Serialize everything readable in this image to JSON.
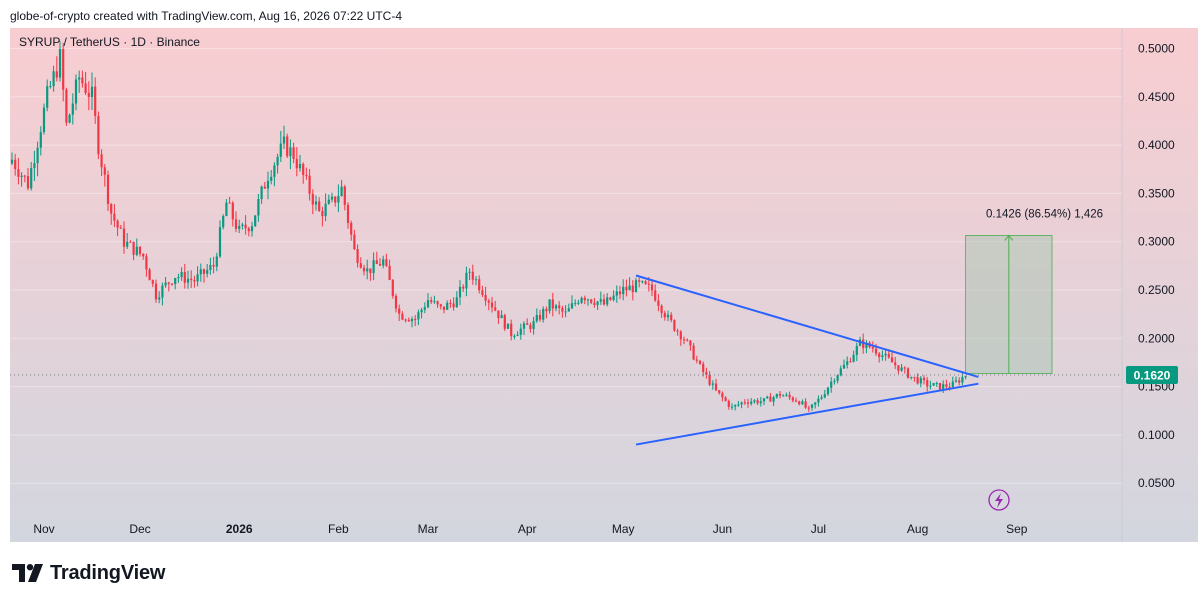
{
  "header": {
    "attribution": "globe-of-crypto created with TradingView.com, Aug 16, 2026 07:22 UTC-4"
  },
  "chart": {
    "symbol_line": "SYRUP / TetherUS · 1D · Binance",
    "last_price_label": "0.1620",
    "measure_label": "0.1426 (86.54%) 1,426",
    "colors": {
      "up": "#089981",
      "down": "#f23645",
      "trendline": "#2962ff",
      "measure": "#4caf50",
      "bg_top": "#f8cdd1",
      "bg_bottom": "#d3d6df"
    },
    "icons": {
      "replay": "lightning-icon"
    }
  },
  "chart_data": {
    "type": "candlestick",
    "title": "SYRUP / TetherUS · 1D · Binance",
    "x_ticks": [
      "Nov",
      "Dec",
      "2026",
      "Feb",
      "Mar",
      "Apr",
      "May",
      "Jun",
      "Jul",
      "Aug",
      "Sep"
    ],
    "y_ticks": [
      "0.5000",
      "0.4500",
      "0.4000",
      "0.3500",
      "0.3000",
      "0.2500",
      "0.2000",
      "0.1500",
      "0.1000",
      "0.0500"
    ],
    "ylim": [
      0.0,
      0.525
    ],
    "date_range": [
      "2025-10-22",
      "2026-09-15"
    ],
    "close_anchors": [
      [
        "2025-10-22",
        0.385
      ],
      [
        "2025-10-27",
        0.36
      ],
      [
        "2025-11-02",
        0.45
      ],
      [
        "2025-11-06",
        0.49
      ],
      [
        "2025-11-08",
        0.42
      ],
      [
        "2025-11-12",
        0.47
      ],
      [
        "2025-11-16",
        0.45
      ],
      [
        "2025-11-18",
        0.4
      ],
      [
        "2025-11-22",
        0.33
      ],
      [
        "2025-11-26",
        0.3
      ],
      [
        "2025-12-02",
        0.285
      ],
      [
        "2025-12-06",
        0.245
      ],
      [
        "2025-12-12",
        0.265
      ],
      [
        "2025-12-18",
        0.26
      ],
      [
        "2025-12-24",
        0.275
      ],
      [
        "2025-12-28",
        0.34
      ],
      [
        "2026-01-01",
        0.31
      ],
      [
        "2026-01-05",
        0.32
      ],
      [
        "2026-01-10",
        0.37
      ],
      [
        "2026-01-15",
        0.4
      ],
      [
        "2026-01-18",
        0.39
      ],
      [
        "2026-01-22",
        0.36
      ],
      [
        "2026-01-26",
        0.33
      ],
      [
        "2026-01-30",
        0.34
      ],
      [
        "2026-02-02",
        0.355
      ],
      [
        "2026-02-06",
        0.29
      ],
      [
        "2026-02-10",
        0.27
      ],
      [
        "2026-02-15",
        0.28
      ],
      [
        "2026-02-20",
        0.225
      ],
      [
        "2026-02-25",
        0.22
      ],
      [
        "2026-03-01",
        0.24
      ],
      [
        "2026-03-05",
        0.23
      ],
      [
        "2026-03-10",
        0.24
      ],
      [
        "2026-03-14",
        0.27
      ],
      [
        "2026-03-18",
        0.25
      ],
      [
        "2026-03-22",
        0.23
      ],
      [
        "2026-03-27",
        0.205
      ],
      [
        "2026-04-03",
        0.215
      ],
      [
        "2026-04-08",
        0.235
      ],
      [
        "2026-04-13",
        0.225
      ],
      [
        "2026-04-18",
        0.245
      ],
      [
        "2026-04-25",
        0.235
      ],
      [
        "2026-05-01",
        0.25
      ],
      [
        "2026-05-06",
        0.255
      ],
      [
        "2026-05-10",
        0.25
      ],
      [
        "2026-05-15",
        0.22
      ],
      [
        "2026-05-20",
        0.2
      ],
      [
        "2026-05-25",
        0.17
      ],
      [
        "2026-05-30",
        0.145
      ],
      [
        "2026-06-04",
        0.128
      ],
      [
        "2026-06-08",
        0.135
      ],
      [
        "2026-06-14",
        0.135
      ],
      [
        "2026-06-19",
        0.142
      ],
      [
        "2026-06-25",
        0.135
      ],
      [
        "2026-06-28",
        0.125
      ],
      [
        "2026-07-02",
        0.14
      ],
      [
        "2026-07-06",
        0.16
      ],
      [
        "2026-07-10",
        0.175
      ],
      [
        "2026-07-14",
        0.195
      ],
      [
        "2026-07-18",
        0.19
      ],
      [
        "2026-07-22",
        0.18
      ],
      [
        "2026-07-26",
        0.17
      ],
      [
        "2026-07-30",
        0.16
      ],
      [
        "2026-08-04",
        0.152
      ],
      [
        "2026-08-08",
        0.15
      ],
      [
        "2026-08-12",
        0.152
      ],
      [
        "2026-08-16",
        0.162
      ]
    ],
    "last_price": 0.162,
    "triangle_upper": [
      [
        "2026-05-05",
        0.265
      ],
      [
        "2026-08-20",
        0.16
      ]
    ],
    "triangle_lower": [
      [
        "2026-05-05",
        0.09
      ],
      [
        "2026-08-20",
        0.153
      ]
    ],
    "target_box": {
      "x": [
        "2026-08-16",
        "2026-09-12"
      ],
      "y": [
        0.1635,
        0.3065
      ]
    },
    "measure": {
      "change": "0.1426",
      "percent": "86.54%",
      "ticks": "1,426"
    }
  }
}
